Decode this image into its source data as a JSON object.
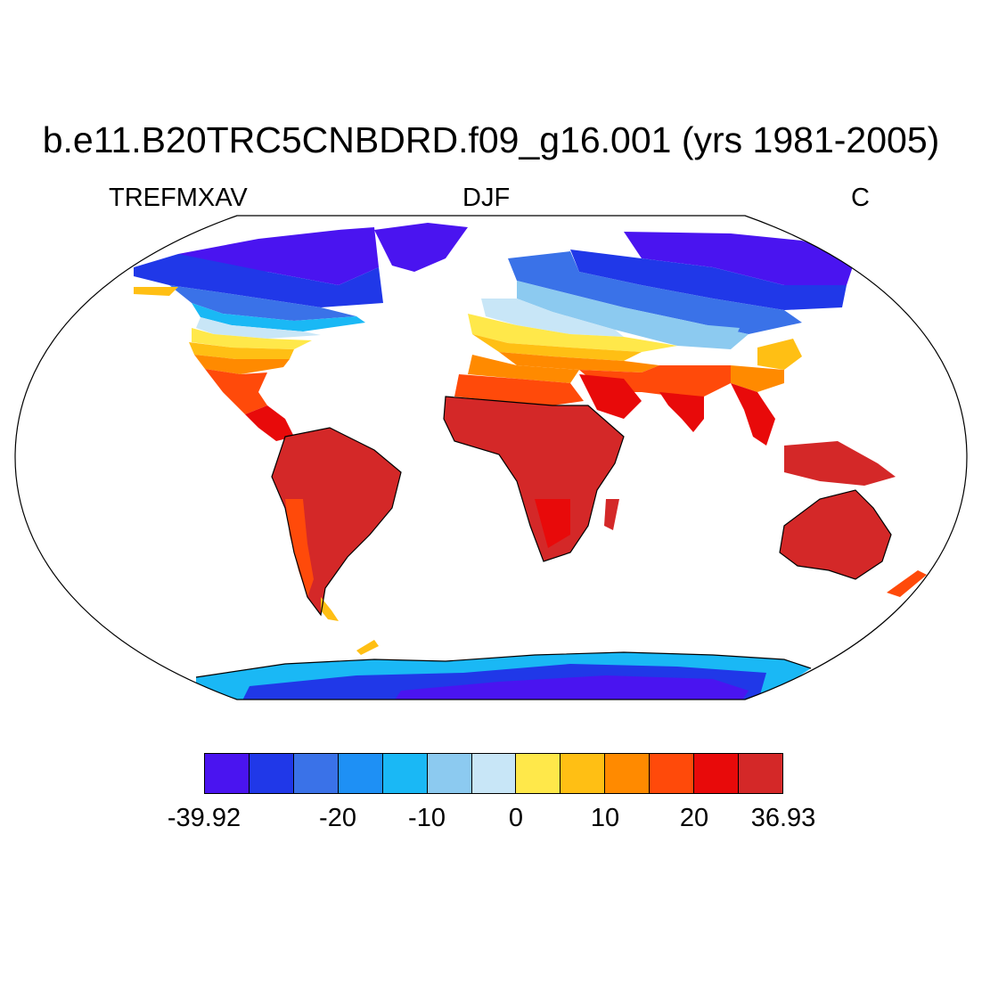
{
  "title": "b.e11.B20TRC5CNBDRD.f09_g16.001 (yrs 1981-2005)",
  "subtitle_left": "TREFMXAV",
  "subtitle_center": "DJF",
  "subtitle_right": "C",
  "colorbar": {
    "colors": [
      "#4a14f0",
      "#2038e8",
      "#3a72e8",
      "#1e90f5",
      "#1ab8f5",
      "#8ccaf0",
      "#c8e6f7",
      "#ffe84a",
      "#ffbf14",
      "#ff8a00",
      "#ff4a0a",
      "#e80a0a",
      "#d42828"
    ],
    "labels": [
      {
        "text": "-39.92",
        "index": 0
      },
      {
        "text": "-20",
        "index": 3
      },
      {
        "text": "-10",
        "index": 5
      },
      {
        "text": "0",
        "index": 7
      },
      {
        "text": "10",
        "index": 9
      },
      {
        "text": "20",
        "index": 11
      },
      {
        "text": "36.93",
        "index": 13
      }
    ]
  },
  "map": {
    "projection": "Robinson",
    "variable_units": "C",
    "ocean_masked": true
  }
}
